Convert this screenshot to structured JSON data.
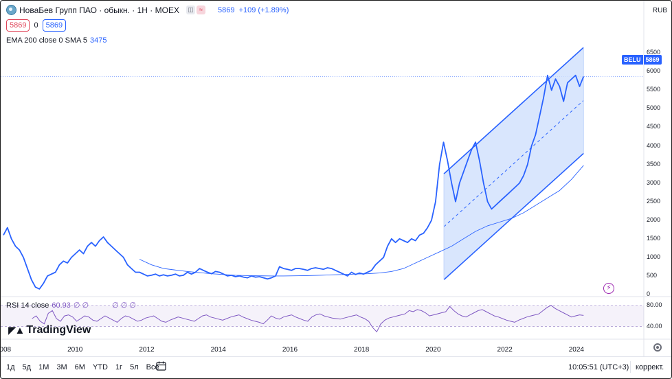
{
  "header": {
    "title": "НоваБев Групп ПАО · обыкн. · 1Н · MOEX",
    "badge_left": "◫",
    "badge_right": "≈",
    "price": "5869",
    "change": "+109 (+1.89%)"
  },
  "quote": {
    "bid": "5869",
    "spread": "0",
    "ask": "5869"
  },
  "indicator": {
    "label": "EMA 200 close 0 SMA 5",
    "value": "3475"
  },
  "rsi": {
    "label": "RSI 14 close",
    "value": "60.93",
    "zero1": "∅ ∅",
    "zero2": "∅ ∅ ∅"
  },
  "currency": "RUB",
  "price_tag": {
    "symbol": "BELU",
    "value": "5869"
  },
  "colors": {
    "accent": "#2962ff",
    "rsi": "#7e57c2",
    "channel_fill": "#cfe0fc",
    "down": "#e0475b"
  },
  "price_axis": [
    "6500",
    "6000",
    "5500",
    "5000",
    "4500",
    "4000",
    "3500",
    "3000",
    "2500",
    "2000",
    "1500",
    "1000",
    "500",
    "0"
  ],
  "rsi_axis": [
    "80.00",
    "40.00"
  ],
  "time_axis": [
    "2008",
    "2010",
    "2012",
    "2014",
    "2016",
    "2018",
    "2020",
    "2022",
    "2024"
  ],
  "logo": {
    "icon": "tradingview-logo-icon",
    "text": "TradingView"
  },
  "timeframes": [
    "1д",
    "5д",
    "1М",
    "3М",
    "6М",
    "YTD",
    "1г",
    "5л",
    "Все"
  ],
  "clock": "10:05:51 (UTC+3)",
  "adjust_label": "коррект.",
  "chart_data": {
    "type": "line",
    "x_start": 2008.0,
    "series": [
      {
        "values": [
          1600,
          1800,
          1500,
          1300,
          1200,
          1000,
          700,
          400,
          200,
          150,
          300,
          500,
          550,
          600,
          800,
          900,
          850,
          1000,
          1100,
          1200,
          1100,
          1300,
          1400,
          1300,
          1450,
          1550,
          1400,
          1300,
          1200,
          1100,
          1000,
          800,
          700,
          600,
          600,
          550,
          500,
          520,
          550,
          500,
          530,
          500,
          520,
          550,
          500,
          520,
          600,
          550,
          600,
          700,
          650,
          600,
          560,
          620,
          600,
          550,
          500,
          520,
          480,
          500,
          470,
          450,
          500,
          470,
          480,
          450,
          420,
          450,
          500,
          750,
          700,
          680,
          650,
          700,
          700,
          680,
          650,
          700,
          720,
          700,
          680,
          720,
          700,
          650,
          600,
          550,
          500,
          600,
          540,
          580,
          550,
          600,
          650,
          800,
          900,
          1000,
          1300,
          1500,
          1400,
          1500,
          1450,
          1400,
          1500,
          1450,
          1600,
          1650,
          1800,
          2000,
          2500,
          3500,
          4100,
          3600,
          3000,
          2500,
          3000,
          3300,
          3600,
          3900,
          4100,
          3600,
          3000,
          2500,
          2300,
          2400,
          2500,
          2600,
          2700,
          2800,
          2900,
          3000,
          3200,
          3500,
          4000,
          4300,
          4800,
          5300,
          5900,
          5500,
          5800,
          5600,
          5200,
          5700,
          5800,
          5900,
          5600,
          5869
        ]
      }
    ],
    "ema200": {
      "values": [
        950,
        800,
        700,
        660,
        620,
        590,
        560,
        540,
        520,
        510,
        505,
        500,
        500,
        505,
        510,
        520,
        530,
        540,
        550,
        560,
        580,
        620,
        700,
        850,
        1000,
        1150,
        1300,
        1500,
        1700,
        1850,
        1950,
        2050,
        2200,
        2400,
        2600,
        2800,
        3100,
        3475
      ],
      "x_from": 2011.8
    },
    "channel": {
      "upper_start": [
        2020.3,
        3250
      ],
      "upper_end": [
        2024.2,
        6650
      ],
      "lower_start": [
        2020.3,
        400
      ],
      "lower_end": [
        2024.2,
        3800
      ]
    },
    "rsi_values": [
      55,
      60,
      50,
      45,
      65,
      70,
      55,
      50,
      60,
      62,
      58,
      50,
      55,
      60,
      58,
      52,
      50,
      55,
      60,
      56,
      52,
      48,
      55,
      60,
      58,
      54,
      50,
      52,
      56,
      58,
      60,
      55,
      50,
      48,
      52,
      55,
      58,
      56,
      54,
      52,
      50,
      55,
      60,
      62,
      58,
      56,
      54,
      52,
      55,
      58,
      60,
      62,
      58,
      55,
      52,
      50,
      48,
      45,
      52,
      60,
      56,
      54,
      58,
      60,
      62,
      58,
      55,
      52,
      50,
      58,
      62,
      64,
      60,
      58,
      56,
      55,
      54,
      56,
      58,
      60,
      62,
      58,
      55,
      50,
      38,
      30,
      45,
      52,
      56,
      58,
      60,
      62,
      64,
      70,
      68,
      72,
      70,
      66,
      60,
      62,
      64,
      66,
      68,
      78,
      70,
      64,
      60,
      58,
      62,
      66,
      70,
      72,
      68,
      64,
      60,
      58,
      55,
      52,
      50,
      48,
      52,
      55,
      58,
      60,
      62,
      64,
      70,
      76,
      80,
      74,
      70,
      66,
      62,
      58,
      60,
      62,
      61
    ],
    "price_range": [
      0,
      6800
    ],
    "rsi_range": [
      20,
      90
    ],
    "x_range": [
      2008.0,
      2025.0
    ],
    "grid": true
  }
}
